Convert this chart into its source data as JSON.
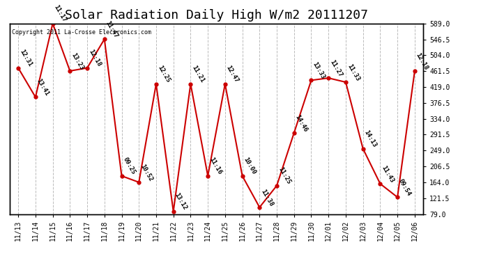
{
  "title": "Solar Radiation Daily High W/m2 20111207",
  "copyright": "Copyright 2011 La-Crosse Electronics.com",
  "dates": [
    "11/13",
    "11/14",
    "11/15",
    "11/16",
    "11/17",
    "11/18",
    "11/19",
    "11/20",
    "11/21",
    "11/22",
    "11/23",
    "11/24",
    "11/25",
    "11/26",
    "11/27",
    "11/28",
    "11/29",
    "11/30",
    "12/01",
    "12/02",
    "12/03",
    "12/04",
    "12/05",
    "12/06"
  ],
  "values": [
    470,
    392,
    589,
    462,
    470,
    547,
    181,
    164,
    427,
    86,
    427,
    181,
    427,
    181,
    97,
    155,
    296,
    437,
    443,
    432,
    254,
    160,
    124,
    461
  ],
  "labels": [
    "12:31",
    "13:41",
    "11:17",
    "13:23",
    "12:18",
    "11:47",
    "09:25",
    "10:52",
    "12:25",
    "13:12",
    "11:21",
    "11:16",
    "12:47",
    "10:00",
    "11:38",
    "11:25",
    "14:46",
    "13:33",
    "11:27",
    "11:33",
    "14:13",
    "11:43",
    "09:54",
    "12:18"
  ],
  "line_color": "#cc0000",
  "marker_color": "#cc0000",
  "bg_color": "#ffffff",
  "grid_color": "#bbbbbb",
  "text_color": "#000000",
  "ylabel_right_values": [
    79.0,
    121.5,
    164.0,
    206.5,
    249.0,
    291.5,
    334.0,
    376.5,
    419.0,
    461.5,
    504.0,
    546.5,
    589.0
  ],
  "ylim": [
    79.0,
    589.0
  ],
  "title_fontsize": 13,
  "label_fontsize": 6.5,
  "copyright_fontsize": 6
}
